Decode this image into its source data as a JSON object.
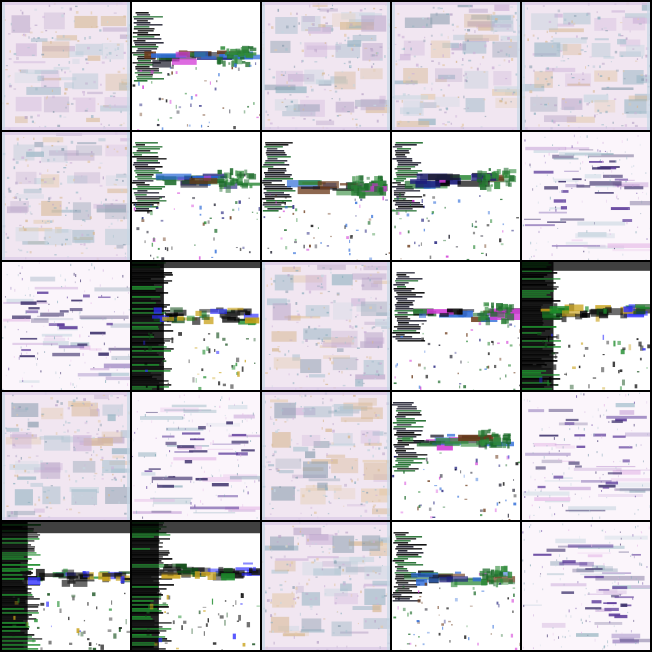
{
  "grid": {
    "rows": 5,
    "cols": 5,
    "border_color": "#000000",
    "styles": {
      "A": {
        "description_key": "pastel-noise",
        "base": "#f1e6f1",
        "colors": [
          "#8fb0bf",
          "#b9a6c8",
          "#e3c9a9",
          "#a9c2cf",
          "#cdb3d8",
          "#8d9fb0",
          "#d7b892",
          "#c7d6e0"
        ]
      },
      "B": {
        "description_key": "white-dark-horizon",
        "base": "#ffffff",
        "colors": [
          "#000000",
          "#1a1a2a",
          "#1c6b2a",
          "#2f8a3a",
          "#1d1d7a",
          "#d23ad6",
          "#2d6bd8",
          "#6b3a1a"
        ]
      },
      "C": {
        "description_key": "white-pastel-light",
        "base": "#fbf5fb",
        "colors": [
          "#9bbac8",
          "#c6a3d6",
          "#5d3c9a",
          "#7fa6b3",
          "#e4b8e6",
          "#8fa5b7",
          "#3b2f6a",
          "#c9d9e2"
        ]
      },
      "D": {
        "description_key": "white-heavy-black",
        "base": "#ffffff",
        "colors": [
          "#000000",
          "#0b0b0b",
          "#1b8a2a",
          "#0f4a16",
          "#2a2a2a",
          "#c9a21a",
          "#2c2cff",
          "#111111"
        ]
      }
    },
    "tiles": [
      [
        "A",
        "B",
        "A",
        "A",
        "A"
      ],
      [
        "A",
        "B",
        "B",
        "B",
        "C"
      ],
      [
        "C",
        "D",
        "A",
        "B",
        "D"
      ],
      [
        "A",
        "C",
        "A",
        "B",
        "C"
      ],
      [
        "D",
        "D",
        "A",
        "B",
        "C"
      ]
    ]
  }
}
